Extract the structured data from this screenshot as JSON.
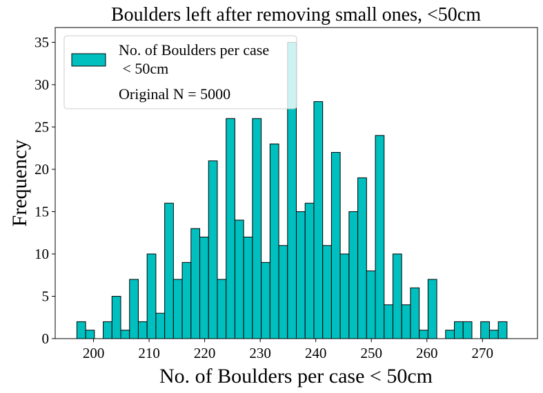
{
  "chart_data": {
    "type": "bar",
    "title": "Boulders left after removing small ones, <50cm",
    "xlabel": "No. of Boulders per case < 50cm",
    "ylabel": "Frequency",
    "xlim": [
      193.1,
      279.9
    ],
    "ylim": [
      0,
      36.75
    ],
    "x_ticks": [
      200,
      210,
      220,
      230,
      240,
      250,
      260,
      270
    ],
    "y_ticks": [
      0,
      5,
      10,
      15,
      20,
      25,
      30,
      35
    ],
    "bin_start": 197.0,
    "bin_width": 1.58,
    "values": [
      2,
      1,
      0,
      2,
      5,
      1,
      7,
      2,
      10,
      3,
      16,
      7,
      9,
      13,
      12,
      21,
      7,
      26,
      14,
      12,
      26,
      9,
      23,
      11,
      35,
      15,
      16,
      28,
      11,
      22,
      10,
      15,
      19,
      8,
      24,
      4,
      10,
      4,
      6,
      1,
      7,
      0,
      1,
      2,
      2,
      0,
      2,
      1,
      2
    ],
    "bar_color": "#00BFBF",
    "edge_color": "#000000",
    "grid": false,
    "legend": {
      "placement": "top-left",
      "series_label_line1": "No. of Boulders per case",
      "series_label_line2": " < 50cm",
      "extra_text": "Original N = 5000"
    }
  }
}
